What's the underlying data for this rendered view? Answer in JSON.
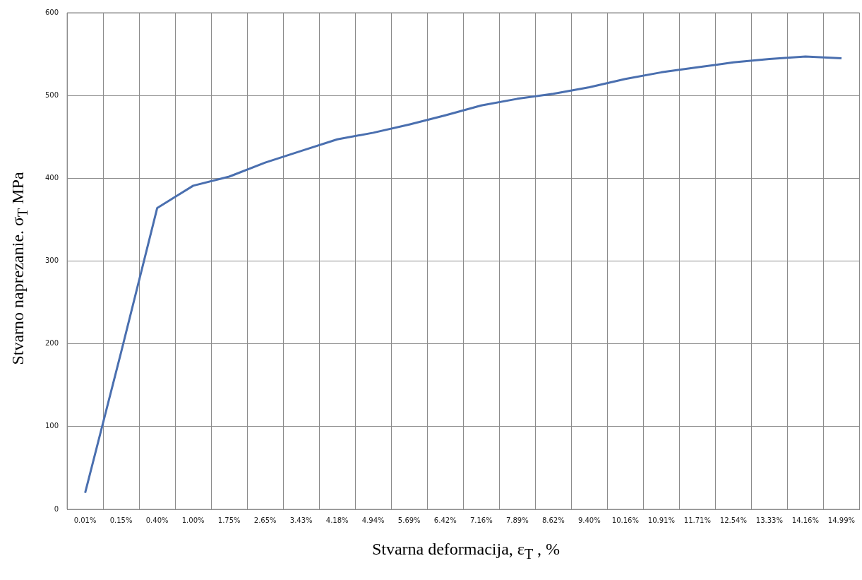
{
  "chart_data": {
    "type": "line",
    "xlabel": "Stvarna deformacija, ε$_{T}$ , %",
    "ylabel": "Stvarno naprezanie. σ$_{T}$  MPa",
    "categories": [
      "0.01%",
      "0.15%",
      "0.40%",
      "1.00%",
      "1.75%",
      "2.65%",
      "3.43%",
      "4.18%",
      "4.94%",
      "5.69%",
      "6.42%",
      "7.16%",
      "7.89%",
      "8.62%",
      "9.40%",
      "10.16%",
      "10.91%",
      "11.71%",
      "12.54%",
      "13.33%",
      "14.16%",
      "14.99%"
    ],
    "series": [
      {
        "color": "#4a6faf",
        "values": [
          20,
          190,
          364,
          391,
          402,
          419,
          433,
          447,
          455,
          465,
          476,
          488,
          496,
          502,
          510,
          520,
          528,
          534,
          540,
          544,
          547,
          545
        ]
      }
    ],
    "ylim": [
      0,
      600
    ],
    "yticks": [
      0,
      100,
      200,
      300,
      400,
      500,
      600
    ],
    "grid": true,
    "legend": false,
    "marker": "none",
    "line_style": "solid"
  }
}
